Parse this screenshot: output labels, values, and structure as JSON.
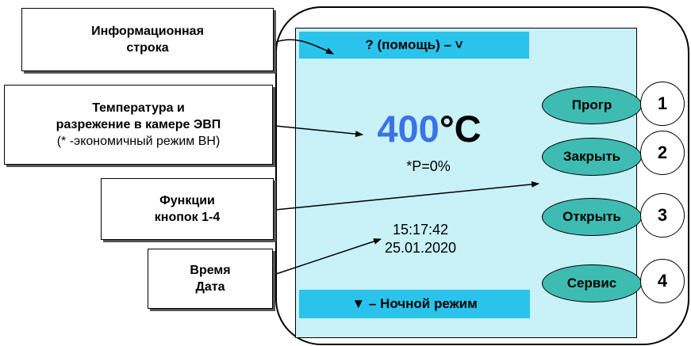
{
  "labels": {
    "info_line1": "Информационная",
    "info_line2": "строка",
    "temp_line1": "Температура и",
    "temp_line2": "разрежение в камере ЭВП",
    "temp_line3": "(* -экономичный режим ВН)",
    "func_line1": "Функции",
    "func_line2": "кнопок 1-4",
    "time_line1": "Время",
    "time_line2": "Дата"
  },
  "screen": {
    "info_bar": "? (помощь) – ˅",
    "temperature_value": "400",
    "temperature_unit": "°C",
    "pressure": "*P=0%",
    "time": "15:17:42",
    "date": "25.01.2020",
    "night_bar": "▼ – Ночной режим"
  },
  "buttons": [
    {
      "label": "Прогр",
      "number": "1"
    },
    {
      "label": "Закрыть",
      "number": "2"
    },
    {
      "label": "Открыть",
      "number": "3"
    },
    {
      "label": "Сервис",
      "number": "4"
    }
  ],
  "colors": {
    "screen_bg": "#c8f1f8",
    "bar_bg": "#2ac3ec",
    "temp_value": "#3a73e6",
    "button_fill": "#3fbcb1"
  }
}
